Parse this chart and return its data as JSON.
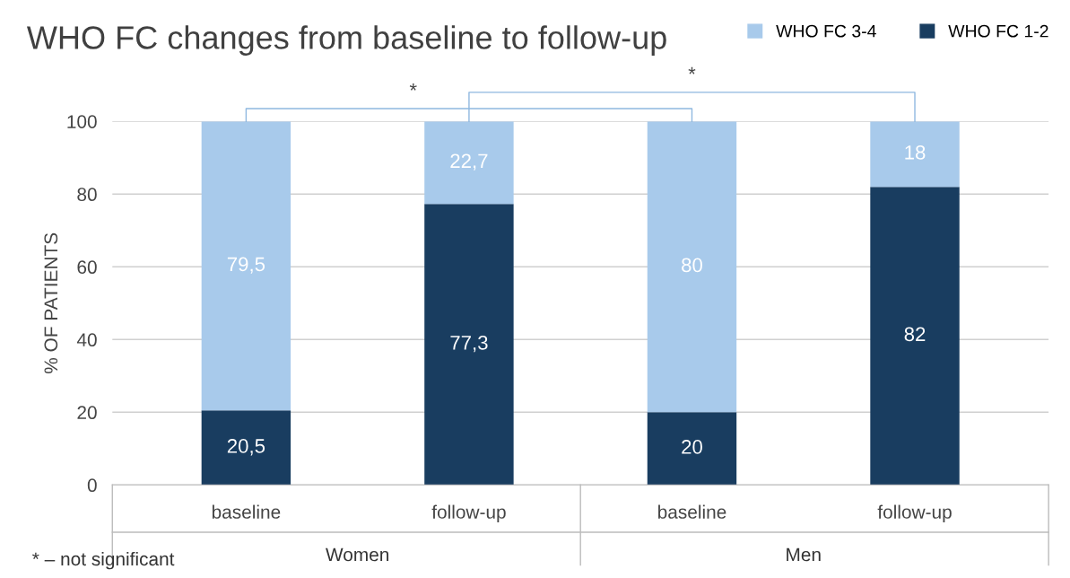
{
  "chart_data": {
    "type": "bar",
    "title": "WHO FC changes from baseline to follow-up",
    "ylabel": "% OF PATIENTS",
    "categories": [
      "baseline",
      "follow-up",
      "baseline",
      "follow-up"
    ],
    "stacked": true,
    "series": [
      {
        "name": "WHO FC 1-2",
        "color": "#193d60",
        "values": [
          20.5,
          77.3,
          20,
          82
        ],
        "value_labels": [
          "20,5",
          "77,3",
          "20",
          "82"
        ]
      },
      {
        "name": "WHO FC 3-4",
        "color": "#a8caeb",
        "values": [
          79.5,
          22.7,
          80,
          18
        ],
        "value_labels": [
          "79,5",
          "22,7",
          "80",
          "18"
        ]
      }
    ],
    "ylim": [
      0,
      100
    ],
    "yticks": [
      0,
      20,
      40,
      60,
      80,
      100
    ],
    "grid": "y",
    "legend": "top right",
    "annotations": [
      "Women",
      "Men",
      "*",
      "*",
      "* – not significant"
    ]
  }
}
